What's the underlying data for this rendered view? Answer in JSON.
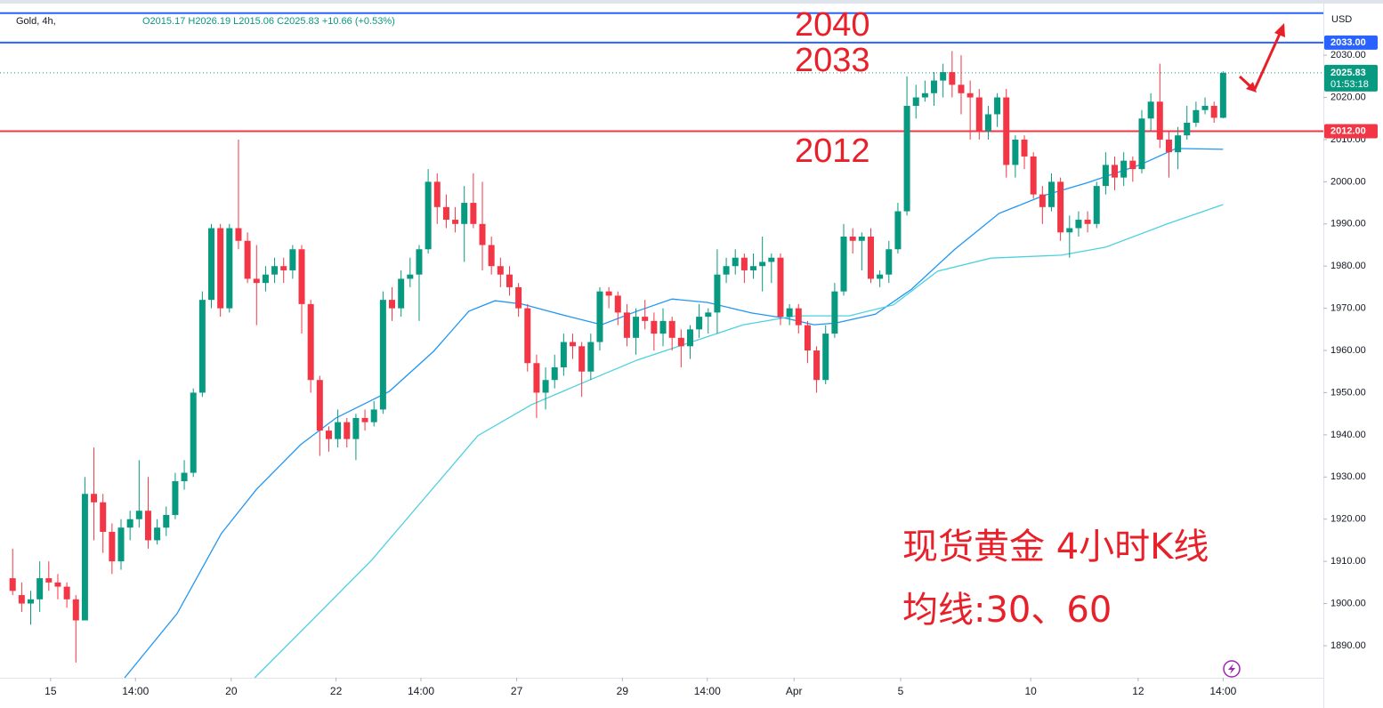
{
  "chart_data": {
    "type": "candlestick",
    "legend": {
      "symbol": "Gold, 4h,",
      "ohlc": "O2015.17 H2026.19 L2015.06 C2025.83 +10.66 (+0.53%)"
    },
    "currency": "USD",
    "up_color": "#089981",
    "down_color": "#f23645",
    "candles": [
      [
        1906,
        1913,
        1902,
        1903
      ],
      [
        1902,
        1905,
        1898,
        1900
      ],
      [
        1900,
        1903,
        1895,
        1901
      ],
      [
        1901,
        1910,
        1898,
        1906
      ],
      [
        1906,
        1910,
        1903,
        1905
      ],
      [
        1905,
        1907,
        1901,
        1904
      ],
      [
        1904,
        1905,
        1899,
        1901
      ],
      [
        1901,
        1902,
        1886,
        1896
      ],
      [
        1896,
        1930,
        1896,
        1926
      ],
      [
        1926,
        1937,
        1915,
        1924
      ],
      [
        1924,
        1926,
        1912,
        1917
      ],
      [
        1917,
        1919,
        1907,
        1910
      ],
      [
        1910,
        1920,
        1908,
        1918
      ],
      [
        1918,
        1922,
        1915,
        1920
      ],
      [
        1920,
        1934,
        1918,
        1922
      ],
      [
        1922,
        1930,
        1913,
        1915
      ],
      [
        1915,
        1920,
        1914,
        1918
      ],
      [
        1918,
        1923,
        1916,
        1921
      ],
      [
        1921,
        1931,
        1920,
        1929
      ],
      [
        1929,
        1934,
        1927,
        1931
      ],
      [
        1931,
        1951,
        1930,
        1950
      ],
      [
        1950,
        1974,
        1949,
        1972
      ],
      [
        1972,
        1990,
        1970,
        1989
      ],
      [
        1989,
        1990,
        1968,
        1970
      ],
      [
        1970,
        1990,
        1969,
        1989
      ],
      [
        1989,
        2010,
        1984,
        1986
      ],
      [
        1986,
        1988,
        1976,
        1977
      ],
      [
        1977,
        1985,
        1966,
        1976
      ],
      [
        1976,
        1980,
        1974,
        1978
      ],
      [
        1978,
        1982,
        1976,
        1980
      ],
      [
        1980,
        1982,
        1976,
        1979
      ],
      [
        1979,
        1985,
        1977,
        1984
      ],
      [
        1984,
        1985,
        1964,
        1971
      ],
      [
        1971,
        1972,
        1950,
        1953
      ],
      [
        1953,
        1954,
        1935,
        1941
      ],
      [
        1941,
        1942,
        1936,
        1939
      ],
      [
        1939,
        1946,
        1937,
        1943
      ],
      [
        1943,
        1944,
        1937,
        1939
      ],
      [
        1939,
        1945,
        1934,
        1944
      ],
      [
        1944,
        1946,
        1941,
        1943
      ],
      [
        1943,
        1948,
        1942,
        1946
      ],
      [
        1946,
        1974,
        1945,
        1972
      ],
      [
        1972,
        1975,
        1967,
        1970
      ],
      [
        1970,
        1979,
        1968,
        1977
      ],
      [
        1977,
        1982,
        1975,
        1978
      ],
      [
        1978,
        1985,
        1967,
        1984
      ],
      [
        1984,
        2003,
        1983,
        2000
      ],
      [
        2000,
        2002,
        1990,
        1994
      ],
      [
        1994,
        1997,
        1989,
        1991
      ],
      [
        1991,
        1994,
        1988,
        1990
      ],
      [
        1990,
        1999,
        1981,
        1995
      ],
      [
        1995,
        2002,
        1989,
        1990
      ],
      [
        1990,
        2000,
        1979,
        1985
      ],
      [
        1985,
        1987,
        1978,
        1980
      ],
      [
        1980,
        1982,
        1975,
        1978
      ],
      [
        1978,
        1980,
        1973,
        1975
      ],
      [
        1975,
        1976,
        1968,
        1970
      ],
      [
        1970,
        1971,
        1955,
        1957
      ],
      [
        1957,
        1959,
        1944,
        1950
      ],
      [
        1950,
        1956,
        1946,
        1953
      ],
      [
        1953,
        1959,
        1951,
        1956
      ],
      [
        1956,
        1964,
        1954,
        1962
      ],
      [
        1962,
        1964,
        1958,
        1961
      ],
      [
        1961,
        1962,
        1949,
        1955
      ],
      [
        1955,
        1964,
        1953,
        1962
      ],
      [
        1962,
        1975,
        1960,
        1974
      ],
      [
        1974,
        1975,
        1970,
        1973
      ],
      [
        1973,
        1974,
        1966,
        1969
      ],
      [
        1969,
        1971,
        1961,
        1963
      ],
      [
        1963,
        1970,
        1959,
        1968
      ],
      [
        1968,
        1972,
        1965,
        1967
      ],
      [
        1967,
        1969,
        1960,
        1964
      ],
      [
        1964,
        1970,
        1961,
        1967
      ],
      [
        1967,
        1968,
        1960,
        1963
      ],
      [
        1963,
        1965,
        1956,
        1961
      ],
      [
        1961,
        1966,
        1958,
        1965
      ],
      [
        1965,
        1971,
        1963,
        1968
      ],
      [
        1968,
        1970,
        1964,
        1969
      ],
      [
        1969,
        1984,
        1964,
        1978
      ],
      [
        1978,
        1982,
        1976,
        1980
      ],
      [
        1980,
        1984,
        1978,
        1982
      ],
      [
        1982,
        1983,
        1976,
        1979
      ],
      [
        1979,
        1983,
        1977,
        1980
      ],
      [
        1980,
        1987,
        1974,
        1981
      ],
      [
        1981,
        1983,
        1976,
        1982
      ],
      [
        1982,
        1983,
        1966,
        1968
      ],
      [
        1968,
        1971,
        1966,
        1970
      ],
      [
        1970,
        1971,
        1964,
        1966
      ],
      [
        1966,
        1967,
        1957,
        1960
      ],
      [
        1960,
        1961,
        1950,
        1953
      ],
      [
        1953,
        1966,
        1952,
        1964
      ],
      [
        1964,
        1976,
        1963,
        1974
      ],
      [
        1974,
        1990,
        1973,
        1987
      ],
      [
        1987,
        1989,
        1983,
        1986
      ],
      [
        1986,
        1988,
        1979,
        1987
      ],
      [
        1987,
        1989,
        1976,
        1977
      ],
      [
        1977,
        1979,
        1975,
        1978
      ],
      [
        1978,
        1986,
        1976,
        1984
      ],
      [
        1984,
        1995,
        1983,
        1993
      ],
      [
        1993,
        2025,
        1992,
        2018
      ],
      [
        2018,
        2023,
        2015,
        2020
      ],
      [
        2020,
        2024,
        2019,
        2021
      ],
      [
        2021,
        2026,
        2018,
        2024
      ],
      [
        2024,
        2028,
        2020,
        2026
      ],
      [
        2026,
        2031,
        2020,
        2023
      ],
      [
        2023,
        2030,
        2016,
        2021
      ],
      [
        2021,
        2024,
        2010,
        2020
      ],
      [
        2020,
        2022,
        2010,
        2012
      ],
      [
        2012,
        2018,
        2010,
        2016
      ],
      [
        2016,
        2021,
        2013,
        2020
      ],
      [
        2020,
        2022,
        2001,
        2004
      ],
      [
        2004,
        2011,
        2001,
        2010
      ],
      [
        2010,
        2011,
        2003,
        2006
      ],
      [
        2006,
        2007,
        1996,
        1997
      ],
      [
        1997,
        1999,
        1990,
        1994
      ],
      [
        1994,
        2002,
        1993,
        2000
      ],
      [
        2000,
        2001,
        1986,
        1988
      ],
      [
        1988,
        1992,
        1982,
        1989
      ],
      [
        1989,
        1993,
        1987,
        1991
      ],
      [
        1991,
        1993,
        1988,
        1990
      ],
      [
        1990,
        2000,
        1989,
        1999
      ],
      [
        1999,
        2007,
        1997,
        2004
      ],
      [
        2004,
        2006,
        1998,
        2001
      ],
      [
        2001,
        2007,
        1999,
        2005
      ],
      [
        2005,
        2006,
        2000,
        2003
      ],
      [
        2003,
        2017,
        2002,
        2015
      ],
      [
        2015,
        2021,
        2012,
        2019
      ],
      [
        2019,
        2028,
        2008,
        2010
      ],
      [
        2010,
        2012,
        2001,
        2007
      ],
      [
        2007,
        2013,
        2003,
        2011
      ],
      [
        2011,
        2018,
        2010,
        2014
      ],
      [
        2014,
        2019,
        2013,
        2017
      ],
      [
        2017,
        2020,
        2016,
        2018
      ],
      [
        2018,
        2019,
        2014,
        2015.17
      ],
      [
        2015.17,
        2026.19,
        2015.06,
        2025.83
      ]
    ],
    "series": [
      {
        "name": "MA30",
        "color": "#2196f3",
        "x": [
          12.4,
          18.2,
          23.1,
          27.0,
          31.9,
          35.8,
          41.7,
          46.6,
          50.5,
          53.4,
          56.4,
          61.3,
          65.2,
          69.1,
          73.0,
          76.9,
          81.8,
          85.7,
          88.7,
          91.1,
          95.5,
          99.5,
          104.3,
          109.2,
          114.1,
          119.0,
          124.9,
          128.8,
          134.0
        ],
        "values": [
          1882.4,
          1897.6,
          1916.6,
          1927.1,
          1937.7,
          1944.0,
          1950.3,
          1959.8,
          1969.3,
          1971.8,
          1971.0,
          1968.2,
          1966.1,
          1969.3,
          1972.2,
          1971.4,
          1968.9,
          1967.6,
          1966.1,
          1966.5,
          1968.6,
          1974.5,
          1984.0,
          1992.5,
          1996.7,
          1999.8,
          2004.1,
          2007.9,
          2007.7
        ]
      },
      {
        "name": "MA60",
        "color": "#4dd0e1",
        "x": [
          26.8,
          32.9,
          39.7,
          45.6,
          51.5,
          57.4,
          63.2,
          69.1,
          75.0,
          80.9,
          86.7,
          92.6,
          97.5,
          102.4,
          108.3,
          116.1,
          121.0,
          127.8,
          134.0
        ],
        "values": [
          1882.4,
          1895.5,
          1910.2,
          1925.0,
          1939.8,
          1947.1,
          1952.4,
          1957.7,
          1961.9,
          1966.1,
          1968.2,
          1968.2,
          1970.8,
          1978.8,
          1981.9,
          1982.6,
          1984.5,
          1990.0,
          1994.6
        ]
      }
    ],
    "price_lines": [
      {
        "value": 2040,
        "color": "#2962ff"
      },
      {
        "value": 2033,
        "label": "2033.00",
        "color": "#2962ff"
      },
      {
        "value": 2012,
        "label": "2012.00",
        "color": "#f23645"
      }
    ],
    "last_price": {
      "value": 2025.83,
      "label": "2025.83",
      "countdown": "01:53:18",
      "color": "#089981"
    },
    "annotations": [
      "2040",
      "2033",
      "2012",
      "现货黄金 4小时K线",
      "均线:30、60"
    ],
    "xlim": [
      -1.4,
      145.1
    ],
    "ylim": [
      1882.4,
      2043.1
    ],
    "xticks": [
      {
        "value": 4.2,
        "label": "15"
      },
      {
        "value": 13.6,
        "label": "14:00"
      },
      {
        "value": 24.2,
        "label": "20"
      },
      {
        "value": 35.8,
        "label": "22"
      },
      {
        "value": 45.2,
        "label": "14:00"
      },
      {
        "value": 55.8,
        "label": "27"
      },
      {
        "value": 67.5,
        "label": "29"
      },
      {
        "value": 76.9,
        "label": "14:00"
      },
      {
        "value": 86.5,
        "label": "Apr"
      },
      {
        "value": 98.3,
        "label": "5"
      },
      {
        "value": 112.7,
        "label": "10"
      },
      {
        "value": 124.6,
        "label": "12"
      },
      {
        "value": 134,
        "label": "14:00"
      }
    ],
    "yticks": [
      {
        "value": 1890,
        "label": "1890.00"
      },
      {
        "value": 1900,
        "label": "1900.00"
      },
      {
        "value": 1910,
        "label": "1910.00"
      },
      {
        "value": 1920,
        "label": "1920.00"
      },
      {
        "value": 1930,
        "label": "1930.00"
      },
      {
        "value": 1940,
        "label": "1940.00"
      },
      {
        "value": 1950,
        "label": "1950.00"
      },
      {
        "value": 1960,
        "label": "1960.00"
      },
      {
        "value": 1970,
        "label": "1970.00"
      },
      {
        "value": 1980,
        "label": "1980.00"
      },
      {
        "value": 1990,
        "label": "1990.00"
      },
      {
        "value": 2000,
        "label": "2000.00"
      },
      {
        "value": 2010,
        "label": "2010.00"
      },
      {
        "value": 2020,
        "label": "2020.00"
      },
      {
        "value": 2030,
        "label": "2030.00"
      }
    ]
  }
}
